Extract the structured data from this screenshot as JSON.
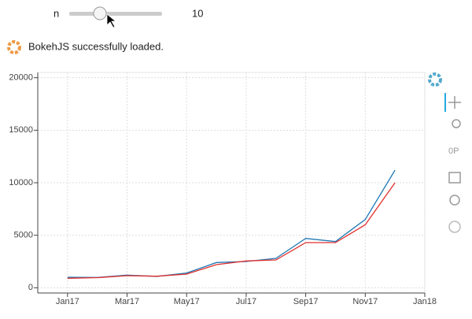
{
  "slider": {
    "label": "n",
    "value": 10
  },
  "status": "BokehJS successfully loaded.",
  "chart_data": {
    "type": "line",
    "x": [
      "2017-01",
      "2017-02",
      "2017-03",
      "2017-04",
      "2017-05",
      "2017-06",
      "2017-07",
      "2017-08",
      "2017-09",
      "2017-10",
      "2017-11",
      "2017-12"
    ],
    "series": [
      {
        "color": "#1f77b4",
        "values": [
          1000,
          980,
          1200,
          1080,
          1400,
          2400,
          2500,
          2800,
          4700,
          4400,
          6500,
          11200
        ]
      },
      {
        "color": "#e0302e",
        "values": [
          900,
          960,
          1150,
          1100,
          1300,
          2200,
          2550,
          2650,
          4300,
          4300,
          6000,
          10000
        ]
      }
    ],
    "xlim": [
      "2016-12",
      "2018-01"
    ],
    "xticks": [
      {
        "value": "2017-01",
        "label": "Jan17"
      },
      {
        "value": "2017-03",
        "label": "Mar17"
      },
      {
        "value": "2017-05",
        "label": "May17"
      },
      {
        "value": "2017-07",
        "label": "Jul17"
      },
      {
        "value": "2017-09",
        "label": "Sep17"
      },
      {
        "value": "2017-11",
        "label": "Nov17"
      },
      {
        "value": "2018-01",
        "label": "Jan18"
      }
    ],
    "ylim": [
      -500,
      20500
    ],
    "yticks": [
      0,
      5000,
      10000,
      15000,
      20000
    ],
    "grid": true
  }
}
